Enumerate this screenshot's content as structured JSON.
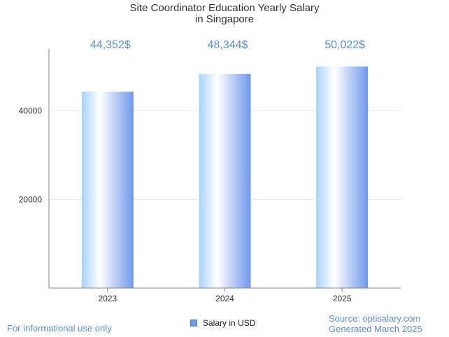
{
  "chart_data": {
    "type": "bar",
    "title": [
      "Site Coordinator Education Yearly Salary",
      "in Singapore"
    ],
    "categories": [
      "2023",
      "2024",
      "2025"
    ],
    "series": [
      {
        "name": "Salary in USD",
        "values": [
          44352,
          48344,
          50022
        ],
        "labels": [
          "44,352$",
          "48,344$",
          "50,022$"
        ]
      }
    ],
    "yticks": [
      20000,
      40000
    ],
    "ylim": [
      0,
      54000
    ],
    "grid": true,
    "legend_position": "bottom-center",
    "colors": {
      "bar_light": "#ffffff",
      "bar_mid": "#a9d2ff",
      "bar_dark": "#6f98ec",
      "label": "#5b8fd6",
      "axis": "#888888",
      "grid": "#e6e6e6"
    }
  },
  "footer": {
    "disclaimer": "For informational use only",
    "source": "Source: optisalary.com",
    "generated": "Generated March 2025"
  }
}
